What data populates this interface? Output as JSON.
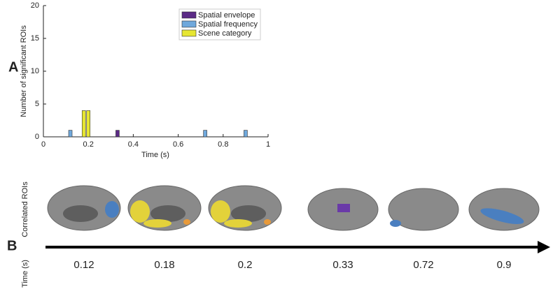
{
  "panel_labels": [
    "A",
    "B"
  ],
  "chart_data": {
    "type": "bar",
    "ylabel": "Number of significant ROIs",
    "xlabel": "Time (s)",
    "xlim": [
      0,
      1
    ],
    "xticks": [
      0,
      0.2,
      0.4,
      0.6,
      0.8,
      1
    ],
    "ylim": [
      0,
      20
    ],
    "yticks": [
      0,
      5,
      10,
      15,
      20
    ],
    "legend": "upper right",
    "series": [
      {
        "name": "Spatial envelope",
        "color": "#5b2a86",
        "x": [
          0.33
        ],
        "values": [
          1
        ]
      },
      {
        "name": "Spatial frequency",
        "color": "#6fa8dc",
        "x": [
          0.12,
          0.72,
          0.9
        ],
        "values": [
          1,
          1,
          1
        ]
      },
      {
        "name": "Scene category",
        "color": "#e6e632",
        "x": [
          0.18,
          0.2
        ],
        "values": [
          4,
          4
        ]
      }
    ]
  },
  "timeline": {
    "ylabel": "Correlated ROIs",
    "axis_label": "Time (s)",
    "times": [
      0.12,
      0.18,
      0.2,
      0.33,
      0.72,
      0.9
    ]
  }
}
